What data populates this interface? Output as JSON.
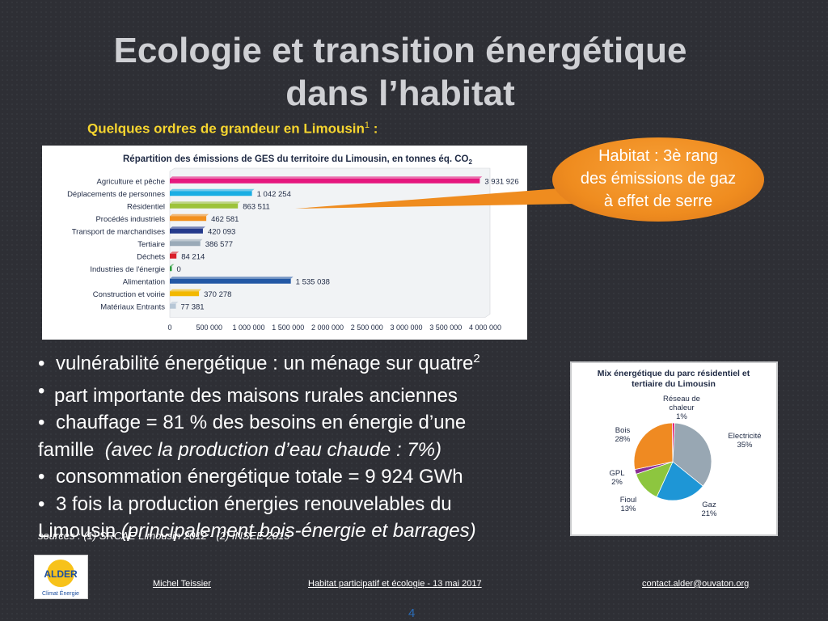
{
  "slide": {
    "title_line1": "Ecologie et transition énergétique",
    "title_line2": "dans l’habitat",
    "subtitle": "Quelques ordres de grandeur en Limousin",
    "subtitle_sup": "1",
    "subtitle_suffix": " :",
    "callout": {
      "line1": "Habitat : 3è rang",
      "line2": "des émissions de gaz",
      "line3": "à effet de serre",
      "color": "#ef8c1f"
    },
    "bullets": {
      "b1": "vulnérabilité énergétique : un ménage sur quatre",
      "b1_sup": "2",
      "b2": "part importante des maisons rurales anciennes",
      "b3a": "chauffage = 81 % des besoins en énergie d’une",
      "b3b": "famille",
      "b3c": "(avec la production d’eau chaude : 7%)",
      "b4": "consommation énergétique totale = 9 924 GWh",
      "b5a": "3 fois la production énergies renouvelables du",
      "b5b": "Limousin",
      "b5c": "(principalement bois-énergie et barrages)"
    },
    "sources": "sources : (1)  SRCAE Limousin 2012  -  (2) INSEE 2015",
    "footer": {
      "author": "Michel Teissier",
      "event": "Habitat participatif et écologie - 13 mai 2017",
      "email": "contact.alder@ouvaton.org"
    },
    "page_number": "4",
    "logo": {
      "name": "ALDER",
      "tagline": "Climat Énergie"
    }
  },
  "chart_data": [
    {
      "type": "bar",
      "orientation": "horizontal",
      "title": "Répartition des émissions de GES du territoire du Limousin, en tonnes éq. CO",
      "title_sub": "2",
      "categories": [
        "Agriculture et pêche",
        "Déplacements de personnes",
        "Résidentiel",
        "Procédés industriels",
        "Transport de marchandises",
        "Tertiaire",
        "Déchets",
        "Industries de l'énergie",
        "Alimentation",
        "Construction et voirie",
        "Matériaux Entrants"
      ],
      "values": [
        3931926,
        1042254,
        863511,
        462581,
        420093,
        386577,
        84214,
        0,
        1535038,
        370278,
        77381
      ],
      "value_labels": [
        "3 931 926",
        "1 042 254",
        "863 511",
        "462 581",
        "420 093",
        "386 577",
        "84 214",
        "0",
        "1 535 038",
        "370 278",
        "77 381"
      ],
      "colors": [
        "#e6177e",
        "#1aaee3",
        "#9dc33b",
        "#f2901e",
        "#243a8c",
        "#9aaab8",
        "#d91f2a",
        "#2e9e3e",
        "#2358a5",
        "#f2b800",
        "#b7c7d6"
      ],
      "xlim": [
        0,
        4000000
      ],
      "x_ticks": [
        "0",
        "500 000",
        "1 000 000",
        "1 500 000",
        "2 000 000",
        "2 500 000",
        "3 000 000",
        "3 500 000",
        "4 000 000"
      ],
      "grid": false
    },
    {
      "type": "pie",
      "title_line1": "Mix énergétique du parc résidentiel et",
      "title_line2": "tertiaire du Limousin",
      "slices": [
        {
          "label_line1": "Electricité",
          "label_line2": "35%",
          "value": 35,
          "color": "#98a7b3"
        },
        {
          "label_line1": "Gaz",
          "label_line2": "21%",
          "value": 21,
          "color": "#1e96d6"
        },
        {
          "label_line1": "Fioul",
          "label_line2": "13%",
          "value": 13,
          "color": "#8dc63f"
        },
        {
          "label_line1": "GPL",
          "label_line2": "2%",
          "value": 2,
          "color": "#8a2f94"
        },
        {
          "label_line1": "Bois",
          "label_line2": "28%",
          "value": 28,
          "color": "#ef8a22"
        },
        {
          "label_line1": "Réseau de",
          "label_line1b": "chaleur",
          "label_line2": "1%",
          "value": 1,
          "color": "#e61c6e"
        }
      ]
    }
  ]
}
